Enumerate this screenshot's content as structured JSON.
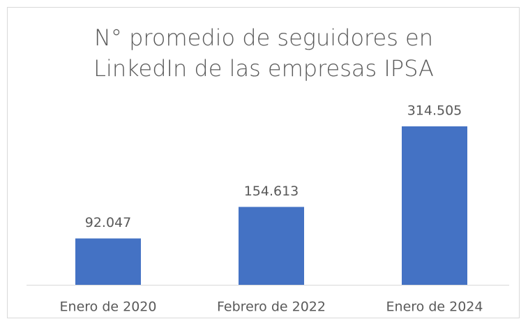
{
  "chart_data": {
    "type": "bar",
    "title": "N° promedio de seguidores en LinkedIn de las empresas IPSA",
    "categories": [
      "Enero de 2020",
      "Febrero de 2022",
      "Enero de 2024"
    ],
    "values": [
      92047,
      154613,
      314505
    ],
    "value_labels": [
      "92.047",
      "154.613",
      "314.505"
    ],
    "color": "#4472c4"
  }
}
